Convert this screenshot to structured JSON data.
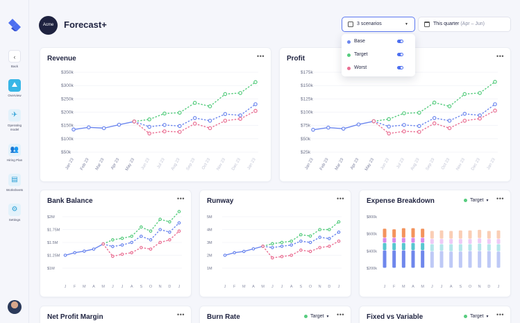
{
  "colors": {
    "base": "#6b86ee",
    "target": "#56cc7e",
    "worst": "#ea6f93",
    "accent": "#38b6e6",
    "brand": "#1f2340"
  },
  "sidebar": {
    "logo_icon": "logo-icon",
    "items": [
      {
        "label": "Back",
        "icon": "chevron-left-icon"
      },
      {
        "label": "Overview",
        "icon": "chart-icon"
      },
      {
        "label": "Operating model",
        "icon": "airplane-icon"
      },
      {
        "label": "Hiring Plan",
        "icon": "people-icon"
      },
      {
        "label": "Worksheets",
        "icon": "document-icon"
      },
      {
        "label": "Settings",
        "icon": "gear-icon"
      }
    ]
  },
  "header": {
    "company": "Acme",
    "title": "Forecast+"
  },
  "scenario_select": {
    "label": "3 scenarios",
    "icon": "checkbox-icon"
  },
  "period_select": {
    "label": "This quarter",
    "range": "(Apr – Jun)",
    "icon": "calendar-icon"
  },
  "dropdown": {
    "options": [
      {
        "label": "Base",
        "color": "#6b86ee",
        "enabled": true
      },
      {
        "label": "Target",
        "color": "#56cc7e",
        "enabled": true
      },
      {
        "label": "Worst",
        "color": "#ea6f93",
        "enabled": true
      }
    ]
  },
  "cards": {
    "revenue": {
      "title": "Revenue",
      "more": "•••"
    },
    "profit": {
      "title": "Profit",
      "more": "•••"
    },
    "bank": {
      "title": "Bank Balance",
      "more": "•••"
    },
    "runway": {
      "title": "Runway",
      "more": "•••"
    },
    "expense": {
      "title": "Expense Breakdown",
      "scenario": "Target",
      "more": "•••"
    },
    "netprofit": {
      "title": "Net Profit Margin",
      "more": "•••"
    },
    "burn": {
      "title": "Burn Rate",
      "scenario": "Target",
      "more": "•••"
    },
    "fixed": {
      "title": "Fixed vs Variable",
      "scenario": "Target",
      "more": "•••"
    }
  },
  "chart_data": [
    {
      "type": "line",
      "id": "revenue",
      "title": "Revenue",
      "x": [
        "Jan 23",
        "Feb 23",
        "Mar 23",
        "Apr 23",
        "May 23",
        "Jun 23",
        "Jul 23",
        "Aug 23",
        "Sep 23",
        "Oct 23",
        "Nov 23",
        "Dec 23",
        "Jan 23"
      ],
      "yticks": [
        "$350k",
        "$300k",
        "$250k",
        "$200k",
        "$150k",
        "$100k",
        "$50k"
      ],
      "ylim": [
        50,
        350
      ],
      "series": [
        {
          "name": "Base",
          "values": [
            135,
            143,
            140,
            153,
            165,
            145,
            152,
            148,
            178,
            168,
            193,
            188,
            230
          ]
        },
        {
          "name": "Target",
          "values": [
            null,
            null,
            null,
            null,
            165,
            173,
            195,
            198,
            235,
            222,
            268,
            272,
            313
          ]
        },
        {
          "name": "Worst",
          "values": [
            null,
            null,
            null,
            null,
            165,
            120,
            128,
            126,
            157,
            140,
            168,
            175,
            205
          ]
        }
      ]
    },
    {
      "type": "line",
      "id": "profit",
      "title": "Profit",
      "x": [
        "Jan 23",
        "Feb 23",
        "Mar 23",
        "Apr 23",
        "May 23",
        "Jun 23",
        "Jul 23",
        "Aug 23",
        "Sep 23",
        "Oct 23",
        "Nov 23",
        "Dec 23",
        "Jan 23"
      ],
      "yticks": [
        "$175k",
        "$150k",
        "$125k",
        "$100k",
        "$75k",
        "$50k",
        "$25k"
      ],
      "ylim": [
        25,
        175
      ],
      "series": [
        {
          "name": "Base",
          "values": [
            67,
            71,
            69,
            77,
            83,
            73,
            76,
            74,
            89,
            84,
            97,
            94,
            115
          ]
        },
        {
          "name": "Target",
          "values": [
            null,
            null,
            null,
            null,
            83,
            87,
            98,
            99,
            118,
            111,
            134,
            136,
            157
          ]
        },
        {
          "name": "Worst",
          "values": [
            null,
            null,
            null,
            null,
            83,
            60,
            64,
            63,
            79,
            70,
            84,
            88,
            103
          ]
        }
      ]
    },
    {
      "type": "line",
      "id": "bank",
      "title": "Bank Balance",
      "x": [
        "J",
        "F",
        "M",
        "A",
        "M",
        "J",
        "J",
        "A",
        "S",
        "O",
        "N",
        "D",
        "J"
      ],
      "yticks": [
        "$2M",
        "$1.75M",
        "$1.5M",
        "$1.25M",
        "$1M"
      ],
      "ylim": [
        1,
        2
      ],
      "series": [
        {
          "name": "Base",
          "values": [
            1.25,
            1.3,
            1.33,
            1.37,
            1.47,
            1.42,
            1.45,
            1.5,
            1.62,
            1.55,
            1.75,
            1.7,
            1.88
          ]
        },
        {
          "name": "Target",
          "values": [
            null,
            null,
            null,
            null,
            1.47,
            1.55,
            1.58,
            1.62,
            1.8,
            1.72,
            1.95,
            1.9,
            2.1
          ]
        },
        {
          "name": "Worst",
          "values": [
            null,
            null,
            null,
            null,
            1.47,
            1.23,
            1.27,
            1.3,
            1.4,
            1.37,
            1.5,
            1.55,
            1.72
          ]
        }
      ]
    },
    {
      "type": "line",
      "id": "runway",
      "title": "Runway",
      "x": [
        "J",
        "F",
        "M",
        "A",
        "M",
        "J",
        "J",
        "A",
        "S",
        "O",
        "N",
        "D",
        "J"
      ],
      "yticks": [
        "5M",
        "4M",
        "3M",
        "2M",
        "1M"
      ],
      "ylim": [
        1,
        5
      ],
      "series": [
        {
          "name": "Base",
          "values": [
            2.0,
            2.2,
            2.3,
            2.5,
            2.7,
            2.6,
            2.7,
            2.8,
            3.1,
            3.0,
            3.4,
            3.3,
            3.8
          ]
        },
        {
          "name": "Target",
          "values": [
            null,
            null,
            null,
            null,
            2.7,
            2.9,
            3.0,
            3.1,
            3.6,
            3.5,
            4.0,
            4.0,
            4.6
          ]
        },
        {
          "name": "Worst",
          "values": [
            null,
            null,
            null,
            null,
            2.7,
            1.8,
            1.9,
            2.0,
            2.4,
            2.3,
            2.6,
            2.7,
            3.1
          ]
        }
      ]
    },
    {
      "type": "bar",
      "id": "expense",
      "title": "Expense Breakdown",
      "stacked": true,
      "x": [
        "J",
        "F",
        "M",
        "A",
        "M",
        "J",
        "J",
        "A",
        "S",
        "O",
        "N",
        "D",
        "J"
      ],
      "yticks": [
        "$800k",
        "$600k",
        "$400k",
        "$200k"
      ],
      "ylim": [
        0,
        900
      ],
      "segments": [
        "#6f87ec",
        "#58c6cf",
        "#d889ea",
        "#f3935c"
      ],
      "actual_count": 5,
      "values": [
        [
          310,
          130,
          90,
          160
        ],
        [
          310,
          130,
          90,
          150
        ],
        [
          310,
          130,
          90,
          170
        ],
        [
          310,
          130,
          90,
          170
        ],
        [
          310,
          130,
          90,
          160
        ],
        [
          290,
          130,
          90,
          140
        ],
        [
          300,
          120,
          90,
          150
        ],
        [
          290,
          130,
          90,
          140
        ],
        [
          290,
          130,
          90,
          150
        ],
        [
          300,
          120,
          90,
          150
        ],
        [
          300,
          130,
          90,
          150
        ],
        [
          300,
          120,
          90,
          140
        ],
        [
          290,
          130,
          90,
          150
        ]
      ]
    }
  ]
}
